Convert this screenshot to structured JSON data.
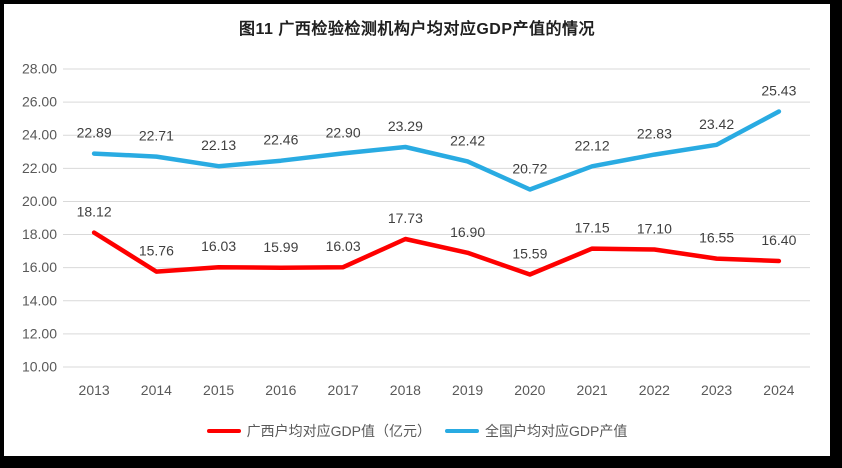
{
  "window": {
    "frame_color": "#000000",
    "canvas_color": "#ffffff"
  },
  "chart_data": {
    "type": "line",
    "title": "图11 广西检验检测机构户均对应GDP产值的情况",
    "categories": [
      "2013",
      "2014",
      "2015",
      "2016",
      "2017",
      "2018",
      "2019",
      "2020",
      "2021",
      "2022",
      "2023",
      "2024"
    ],
    "series": [
      {
        "name": "广西户均对应GDP值（亿元）",
        "color": "#fe0000",
        "values": [
          18.12,
          15.76,
          16.03,
          15.99,
          16.03,
          17.73,
          16.9,
          15.59,
          17.15,
          17.1,
          16.55,
          16.4
        ],
        "labels": [
          "18.12",
          "15.76",
          "16.03",
          "15.99",
          "16.03",
          "17.73",
          "16.90",
          "15.59",
          "17.15",
          "17.10",
          "16.55",
          "16.40"
        ]
      },
      {
        "name": "全国户均对应GDP产值",
        "color": "#29abe2",
        "values": [
          22.89,
          22.71,
          22.13,
          22.46,
          22.9,
          23.29,
          22.42,
          20.72,
          22.12,
          22.83,
          23.42,
          25.43
        ],
        "labels": [
          "22.89",
          "22.71",
          "22.13",
          "22.46",
          "22.90",
          "23.29",
          "22.42",
          "20.72",
          "22.12",
          "22.83",
          "23.42",
          "25.43"
        ]
      }
    ],
    "ylim": [
      10,
      28
    ],
    "ytick_step": 2,
    "ytick_labels": [
      "10.00",
      "12.00",
      "14.00",
      "16.00",
      "18.00",
      "20.00",
      "22.00",
      "24.00",
      "26.00",
      "28.00"
    ],
    "grid": true,
    "gridline_color": "#d9d9d9",
    "axis_text_color": "#595959",
    "data_label_color": "#404040",
    "data_labels": true,
    "legend_position": "bottom"
  }
}
